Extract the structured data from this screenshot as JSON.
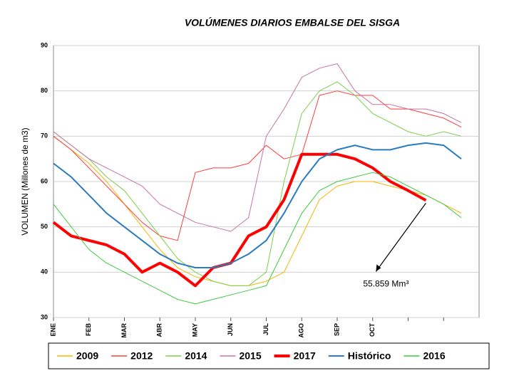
{
  "chart_data": {
    "type": "line",
    "title": "VOLÚMENES DIARIOS EMBALSE DEL SISGA",
    "y_label": "VOLUMEN (Millones de m3)",
    "categories": [
      "ENE",
      null,
      "FEB",
      null,
      "MAR",
      null,
      "ABR",
      null,
      "MAY",
      null,
      "JUN",
      null,
      "JUL",
      null,
      "AGO",
      null,
      "SEP",
      null,
      "OCT",
      null,
      null,
      null,
      null,
      null
    ],
    "ylim": [
      30,
      90
    ],
    "yticks": [
      30,
      40,
      50,
      60,
      70,
      80,
      90
    ],
    "grid": true,
    "series": [
      {
        "name": "2009",
        "color": "#f7b500",
        "width": 1,
        "values": [
          70,
          67,
          64,
          60,
          55,
          50,
          45,
          41,
          39,
          38,
          37,
          37,
          38,
          40,
          48,
          56,
          59,
          60,
          60,
          59,
          58,
          57,
          55,
          53
        ]
      },
      {
        "name": "2012",
        "color": "#ff3b3b",
        "width": 1,
        "values": [
          70,
          67,
          63,
          59,
          55,
          51,
          48,
          47,
          62,
          63,
          63,
          64,
          68,
          65,
          66,
          79,
          80,
          79,
          79,
          76,
          76,
          75,
          74,
          72
        ]
      },
      {
        "name": "2014",
        "color": "#7ccf4a",
        "width": 1,
        "values": [
          71,
          68,
          65,
          61,
          58,
          53,
          48,
          43,
          40,
          38,
          37,
          37,
          40,
          60,
          75,
          80,
          82,
          79,
          75,
          73,
          71,
          70,
          71,
          70
        ]
      },
      {
        "name": "2015",
        "color": "#c8739f",
        "width": 1,
        "values": [
          71,
          68,
          65,
          63,
          61,
          59,
          55,
          53,
          51,
          50,
          49,
          52,
          70,
          76,
          83,
          85,
          86,
          80,
          77,
          77,
          76,
          76,
          75,
          73
        ]
      },
      {
        "name": "2017",
        "color": "#ff0000",
        "width": 4,
        "values": [
          51,
          48,
          47,
          46,
          44,
          40,
          42,
          40,
          37,
          41,
          42,
          48,
          50,
          56,
          66,
          66,
          66,
          65,
          63,
          60,
          58,
          55.859,
          null,
          null
        ]
      },
      {
        "name": "Histórico",
        "color": "#2a7bc0",
        "width": 2,
        "values": [
          64,
          61,
          57,
          53,
          50,
          47,
          44,
          42,
          41,
          41,
          42,
          44,
          47,
          53,
          60,
          65,
          67,
          68,
          67,
          67,
          68,
          68.5,
          68,
          65
        ]
      },
      {
        "name": "2016",
        "color": "#3fc93f",
        "width": 1,
        "values": [
          55,
          50,
          45,
          42,
          40,
          38,
          36,
          34,
          33,
          34,
          35,
          36,
          37,
          45,
          53,
          58,
          60,
          61,
          62,
          61,
          59,
          57,
          55,
          52
        ]
      }
    ],
    "annotation": "55.859 Mm³"
  }
}
